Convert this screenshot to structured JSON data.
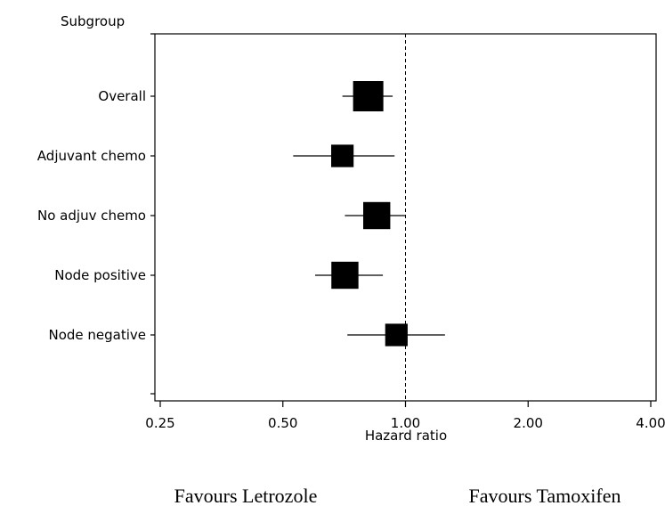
{
  "chart_data": {
    "type": "forest",
    "y_axis_title": "Subgroup",
    "x_axis_title": "Hazard ratio",
    "x_scale": "log2",
    "xlim": [
      0.25,
      4.0
    ],
    "x_ticks": [
      0.25,
      0.5,
      1.0,
      2.0,
      4.0
    ],
    "x_tick_labels": [
      "0.25",
      "0.50",
      "1.00",
      "2.00",
      "4.00"
    ],
    "reference_line": 1.0,
    "subgroups": [
      {
        "label": "Overall",
        "hr": 0.81,
        "lower": 0.7,
        "upper": 0.93,
        "marker_weight": 1.0
      },
      {
        "label": "Adjuvant chemo",
        "hr": 0.7,
        "lower": 0.53,
        "upper": 0.94,
        "marker_weight": 0.55
      },
      {
        "label": "No adjuv chemo",
        "hr": 0.85,
        "lower": 0.71,
        "upper": 1.0,
        "marker_weight": 0.8
      },
      {
        "label": "Node positive",
        "hr": 0.71,
        "lower": 0.6,
        "upper": 0.88,
        "marker_weight": 0.8
      },
      {
        "label": "Node negative",
        "hr": 0.95,
        "lower": 0.72,
        "upper": 1.25,
        "marker_weight": 0.55
      }
    ],
    "favours_left": "Favours Letrozole",
    "favours_right": "Favours Tamoxifen"
  }
}
